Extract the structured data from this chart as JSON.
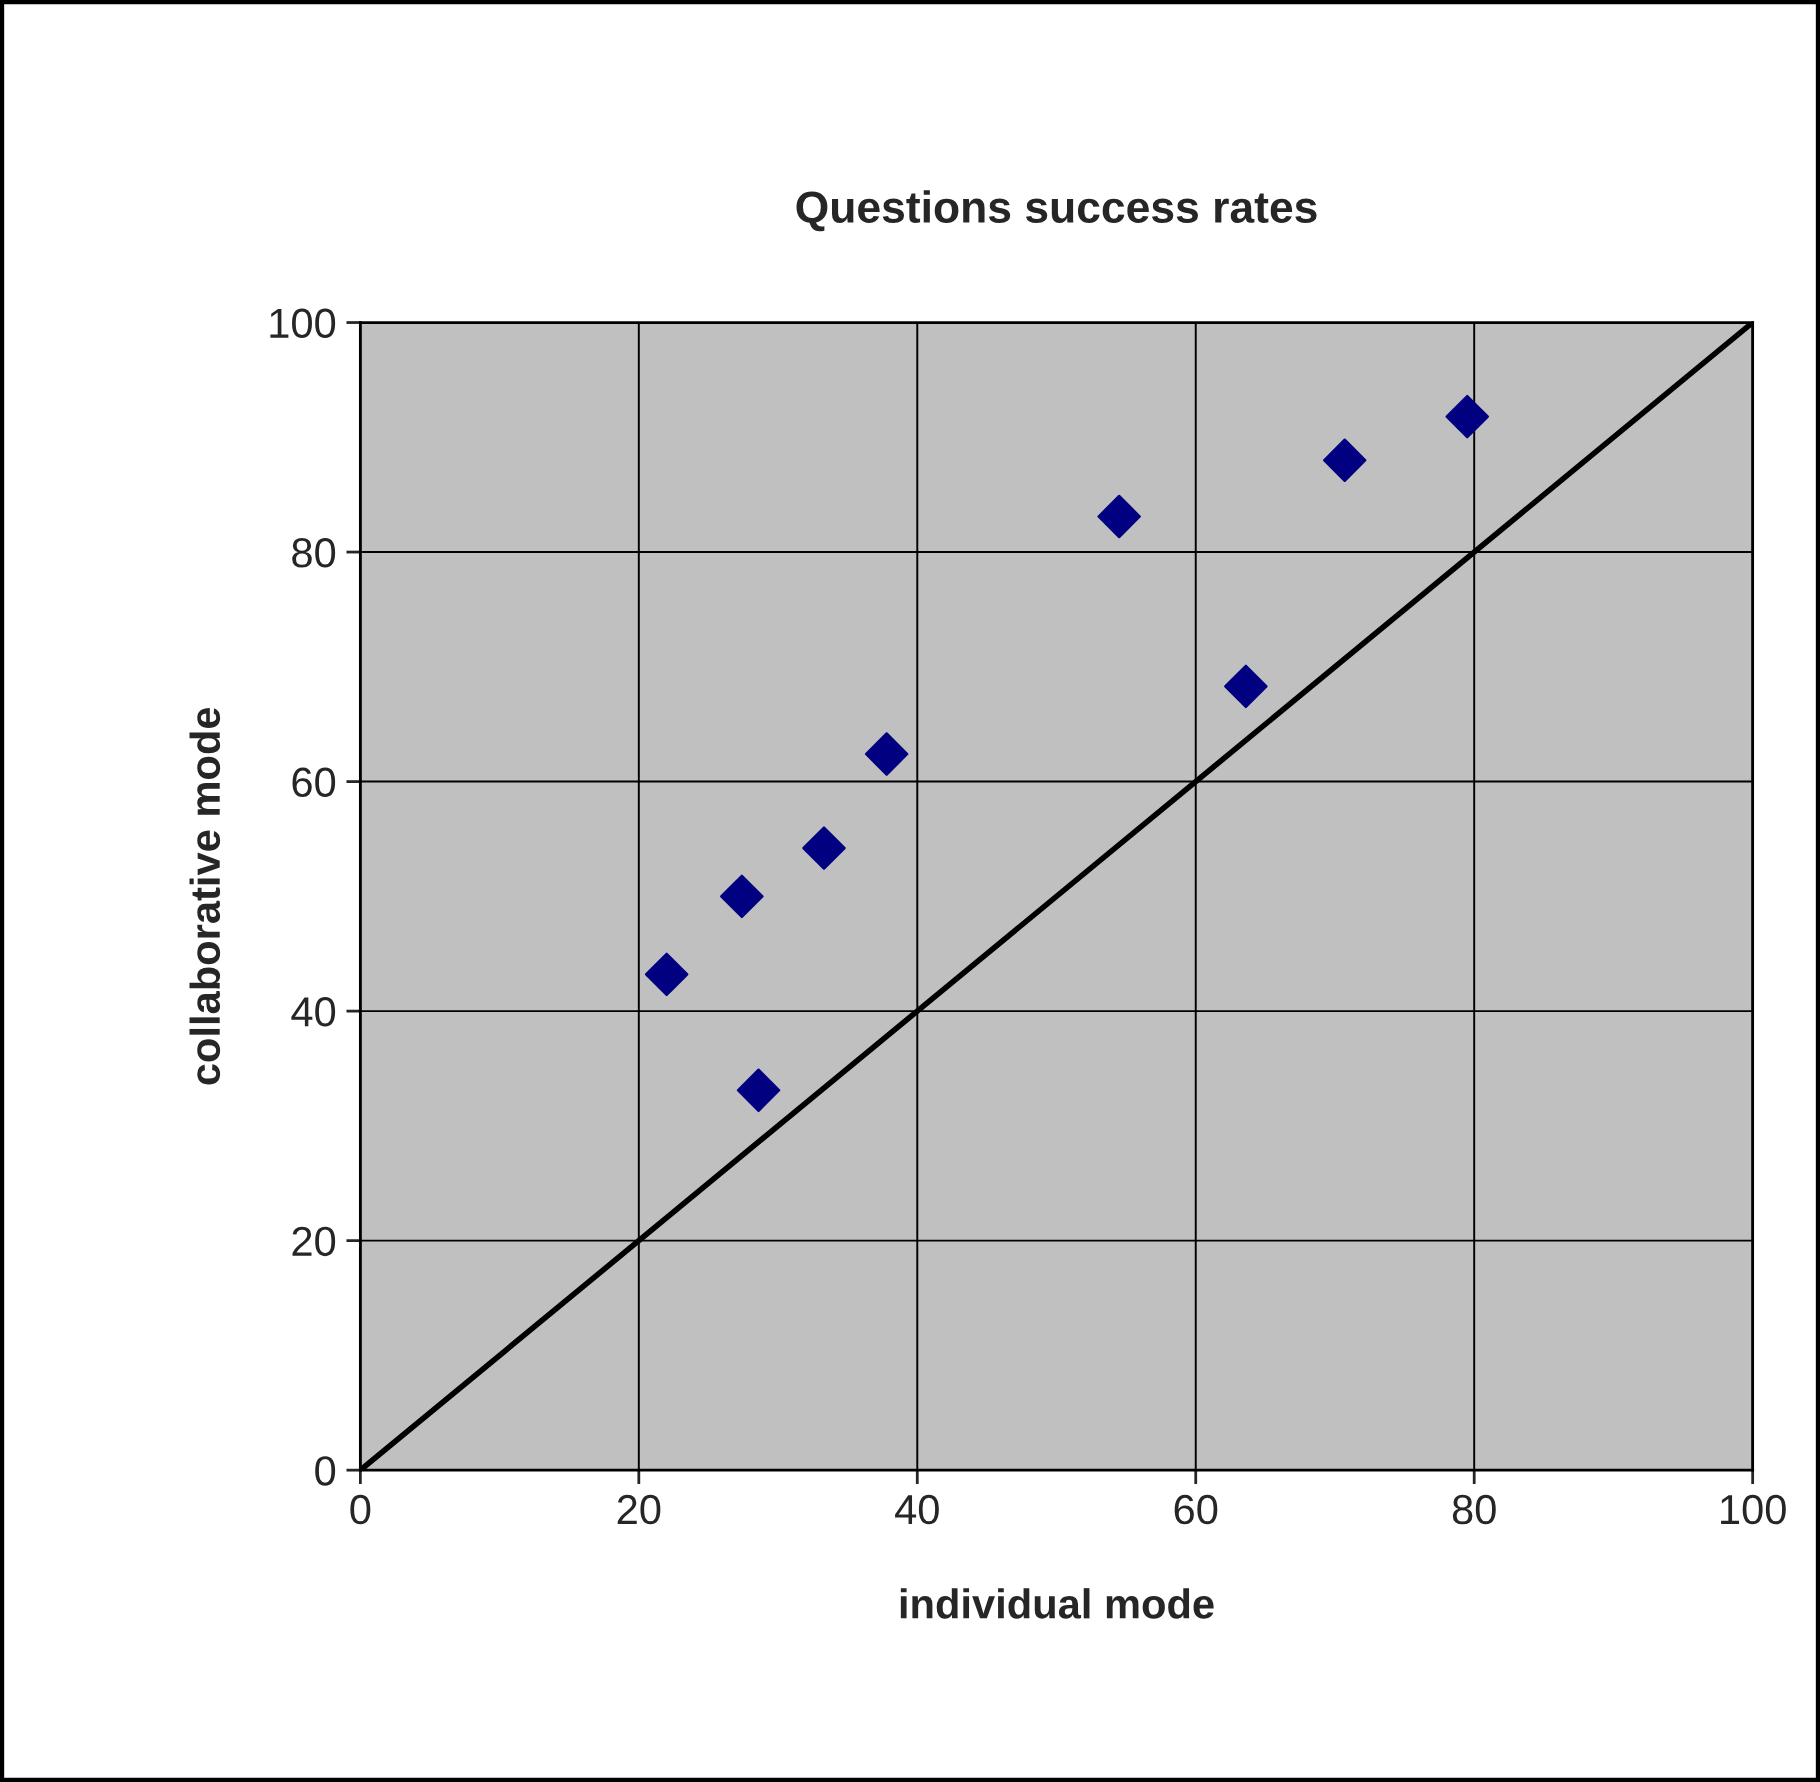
{
  "chart_data": {
    "type": "scatter",
    "title": "Questions success rates",
    "xlabel": "individual mode",
    "ylabel": "collaborative mode",
    "series": [
      {
        "color": "#000080",
        "marker": "diamond",
        "x": [
          22.0,
          27.4,
          28.6,
          33.3,
          37.8,
          54.5,
          63.6,
          70.7,
          79.5
        ],
        "values": [
          43.2,
          50.0,
          33.1,
          54.2,
          62.4,
          83.1,
          68.3,
          88.0,
          91.8
        ]
      },
      {
        "type": "line",
        "color": "#000000",
        "line_style": "solid",
        "x": [
          0,
          100
        ],
        "values": [
          0,
          100
        ]
      }
    ],
    "xlim": [
      0,
      100
    ],
    "ylim": [
      0,
      100
    ],
    "xticks": [
      0,
      20,
      40,
      60,
      80,
      100
    ],
    "yticks": [
      0,
      20,
      40,
      60,
      80,
      100
    ],
    "grid": true,
    "legend": false
  }
}
